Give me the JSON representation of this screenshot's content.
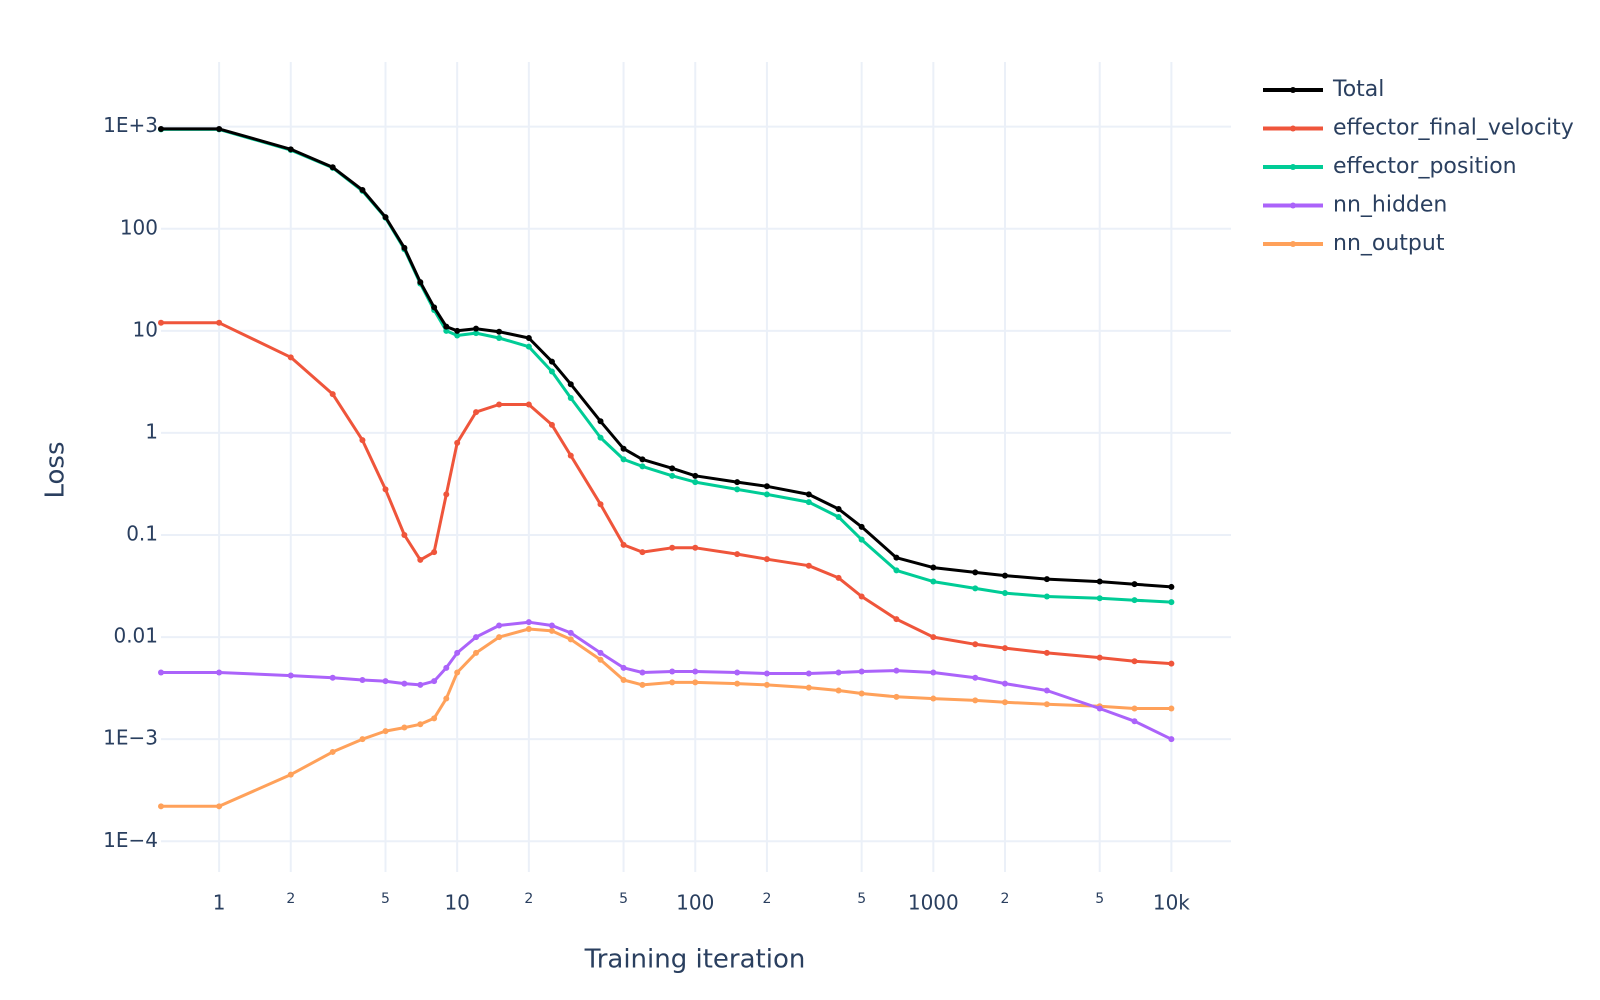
{
  "chart_data": {
    "type": "line",
    "x_label": "Training iteration",
    "y_label": "Loss",
    "x_log": true,
    "y_log": true,
    "grid": true,
    "legend": "outside-top-right",
    "xlim": [
      0.57,
      17800
    ],
    "ylim": [
      5e-05,
      4300
    ],
    "xticks": [
      1,
      {
        "value": 2,
        "label": "2"
      },
      {
        "value": 5,
        "label": "5"
      },
      10,
      {
        "value": 20,
        "label": "2"
      },
      {
        "value": 50,
        "label": "5"
      },
      100,
      {
        "value": 200,
        "label": "2"
      },
      {
        "value": 500,
        "label": "5"
      },
      1000,
      {
        "value": 2000,
        "label": "2"
      },
      {
        "value": 5000,
        "label": "5"
      },
      {
        "value": 10000,
        "label": "10k"
      }
    ],
    "yticks": [
      {
        "value": 1000,
        "label": "1E+3"
      },
      100,
      10,
      1,
      0.1,
      0.01,
      {
        "value": 0.001,
        "label": "1E−3"
      },
      {
        "value": 0.0001,
        "label": "1E−4"
      }
    ],
    "x": [
      0.57,
      1,
      2,
      3,
      4,
      5,
      6,
      7,
      8,
      9,
      10,
      12,
      15,
      20,
      25,
      30,
      40,
      50,
      60,
      80,
      100,
      150,
      200,
      300,
      400,
      500,
      700,
      1000,
      1500,
      2000,
      3000,
      5000,
      7000,
      10000
    ],
    "series": [
      {
        "name": "Total",
        "color": "#000000",
        "values": [
          950,
          950,
          600,
          400,
          240,
          130,
          65,
          30,
          17,
          11,
          10,
          10.5,
          9.8,
          8.5,
          5,
          3,
          1.3,
          0.7,
          0.55,
          0.45,
          0.38,
          0.33,
          0.3,
          0.25,
          0.18,
          0.12,
          0.06,
          0.048,
          0.043,
          0.04,
          0.037,
          0.035,
          0.033,
          0.031
        ]
      },
      {
        "name": "effector_final_velocity",
        "color": "#EF553B",
        "values": [
          12,
          12,
          5.5,
          2.4,
          0.85,
          0.28,
          0.1,
          0.057,
          0.068,
          0.25,
          0.8,
          1.6,
          1.9,
          1.9,
          1.2,
          0.6,
          0.2,
          0.08,
          0.068,
          0.075,
          0.075,
          0.065,
          0.058,
          0.05,
          0.038,
          0.025,
          0.015,
          0.01,
          0.0085,
          0.0078,
          0.007,
          0.0063,
          0.0058,
          0.0055
        ]
      },
      {
        "name": "effector_position",
        "color": "#00CC96",
        "values": [
          940,
          940,
          590,
          395,
          235,
          128,
          63,
          29,
          16,
          10,
          9,
          9.5,
          8.5,
          7,
          4,
          2.2,
          0.9,
          0.55,
          0.47,
          0.38,
          0.33,
          0.28,
          0.25,
          0.21,
          0.15,
          0.09,
          0.045,
          0.035,
          0.03,
          0.027,
          0.025,
          0.024,
          0.023,
          0.022
        ]
      },
      {
        "name": "nn_hidden",
        "color": "#AB63FA",
        "values": [
          0.0045,
          0.0045,
          0.0042,
          0.004,
          0.0038,
          0.0037,
          0.0035,
          0.0034,
          0.0037,
          0.005,
          0.007,
          0.01,
          0.013,
          0.014,
          0.013,
          0.011,
          0.007,
          0.005,
          0.0045,
          0.0046,
          0.0046,
          0.0045,
          0.0044,
          0.0044,
          0.0045,
          0.0046,
          0.0047,
          0.0045,
          0.004,
          0.0035,
          0.003,
          0.002,
          0.0015,
          0.001
        ]
      },
      {
        "name": "nn_output",
        "color": "#FFA15A",
        "values": [
          0.00022,
          0.00022,
          0.00045,
          0.00075,
          0.001,
          0.0012,
          0.0013,
          0.0014,
          0.0016,
          0.0025,
          0.0045,
          0.007,
          0.01,
          0.012,
          0.0115,
          0.0095,
          0.006,
          0.0038,
          0.0034,
          0.0036,
          0.0036,
          0.0035,
          0.0034,
          0.0032,
          0.003,
          0.0028,
          0.0026,
          0.0025,
          0.0024,
          0.0023,
          0.0022,
          0.0021,
          0.002,
          0.002
        ]
      }
    ]
  }
}
